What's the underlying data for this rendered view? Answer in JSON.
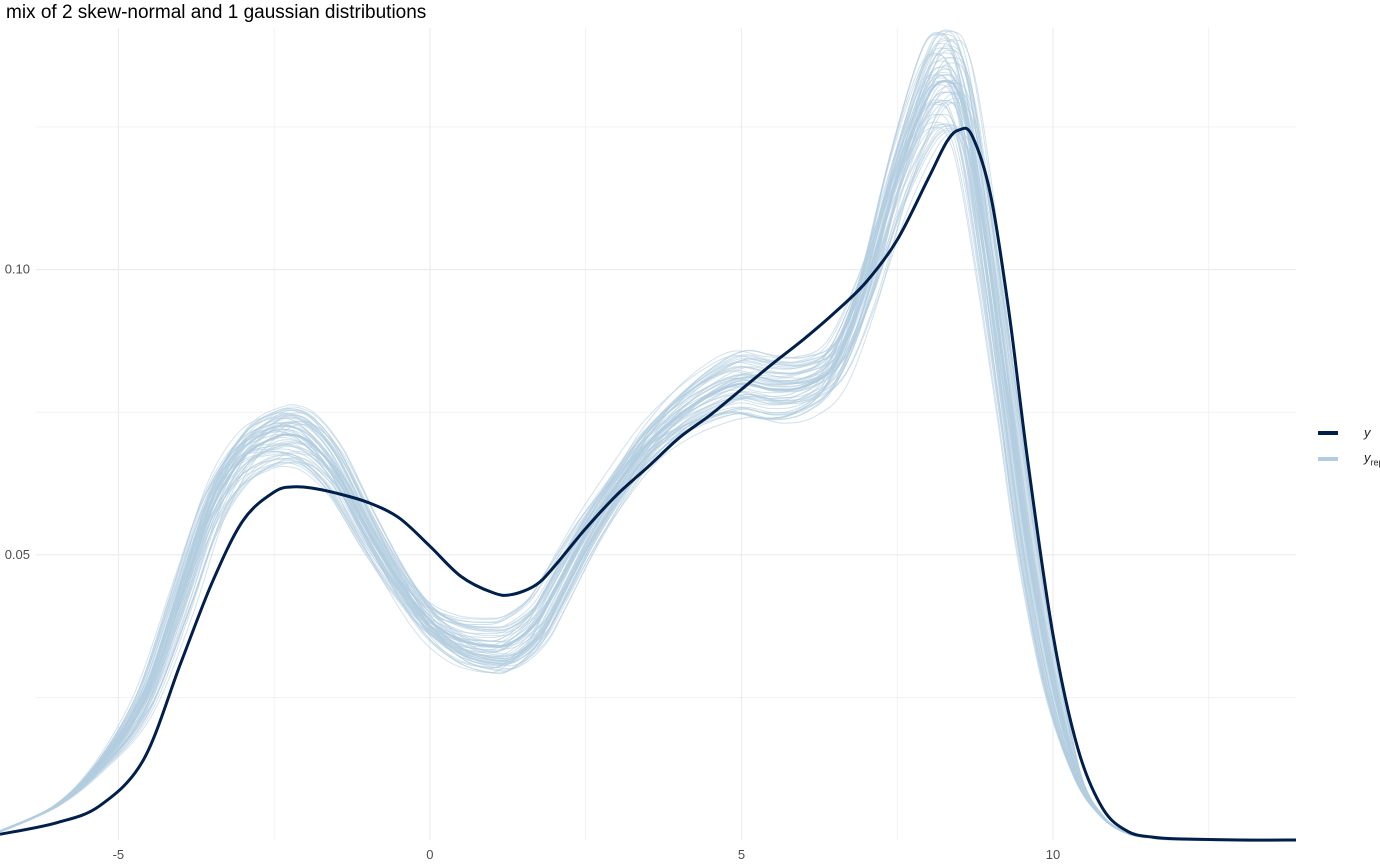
{
  "title": "mix of 2 skew-normal and 1 gaussian distributions",
  "colors": {
    "y": "#011f4b",
    "yrep": "#b3cde0",
    "grid": "#ebebeb",
    "axis_text": "#4d4d4d"
  },
  "legend": {
    "y_label": "y",
    "yrep_label": "y",
    "yrep_sub": "rep"
  },
  "chart_data": {
    "type": "line",
    "title": "mix of 2 skew-normal and 1 gaussian distributions",
    "xlabel": "",
    "ylabel": "",
    "xlim": [
      -6.9,
      13.9
    ],
    "ylim": [
      0.0,
      0.1434
    ],
    "x_ticks": [
      -5,
      0,
      5,
      10
    ],
    "x_tick_labels": [
      "-5",
      "0",
      "5",
      "10"
    ],
    "y_ticks": [
      0.05,
      0.1
    ],
    "y_tick_labels": [
      "0.05",
      "0.10"
    ],
    "grid": true,
    "legend_position": "right",
    "series": [
      {
        "name": "y",
        "x": [
          -6.9,
          -6.0,
          -5.3,
          -4.6,
          -4.0,
          -3.5,
          -3.0,
          -2.5,
          -2.2,
          -1.9,
          -1.5,
          -1.0,
          -0.5,
          0.0,
          0.5,
          1.0,
          1.3,
          1.7,
          2.0,
          2.5,
          3.0,
          3.5,
          4.0,
          4.5,
          5.0,
          5.5,
          6.0,
          6.5,
          7.0,
          7.5,
          8.0,
          8.3,
          8.5,
          8.7,
          9.0,
          9.3,
          9.6,
          10.0,
          10.4,
          10.8,
          11.2,
          11.6,
          12.0,
          13.0,
          13.9
        ],
        "values": [
          0.001,
          0.003,
          0.006,
          0.014,
          0.031,
          0.045,
          0.056,
          0.061,
          0.0619,
          0.0617,
          0.0608,
          0.0592,
          0.0565,
          0.0515,
          0.0462,
          0.0434,
          0.043,
          0.0447,
          0.048,
          0.0546,
          0.0605,
          0.0654,
          0.0705,
          0.0745,
          0.079,
          0.0835,
          0.0878,
          0.0925,
          0.0978,
          0.1052,
          0.116,
          0.1225,
          0.1245,
          0.1235,
          0.113,
          0.092,
          0.066,
          0.036,
          0.016,
          0.0055,
          0.0015,
          0.0005,
          0.0002,
          0.0,
          0.0
        ]
      },
      {
        "name": "yrep",
        "x": [
          -6.9,
          -6.0,
          -5.3,
          -4.6,
          -4.0,
          -3.5,
          -3.0,
          -2.5,
          -2.2,
          -1.9,
          -1.5,
          -1.0,
          -0.5,
          0.0,
          0.5,
          1.0,
          1.3,
          1.7,
          2.0,
          2.5,
          3.0,
          3.5,
          4.0,
          4.5,
          5.0,
          5.5,
          6.0,
          6.5,
          7.0,
          7.5,
          8.0,
          8.3,
          8.5,
          8.7,
          9.0,
          9.3,
          9.6,
          10.0,
          10.4,
          10.8,
          11.2,
          11.6,
          12.0,
          13.0,
          13.9
        ],
        "values": [
          0.0015,
          0.006,
          0.013,
          0.024,
          0.042,
          0.058,
          0.067,
          0.0705,
          0.071,
          0.0695,
          0.0645,
          0.0545,
          0.0455,
          0.0385,
          0.035,
          0.034,
          0.0345,
          0.038,
          0.0435,
          0.0535,
          0.062,
          0.0695,
          0.0745,
          0.078,
          0.08,
          0.079,
          0.0795,
          0.0835,
          0.097,
          0.116,
          0.1305,
          0.133,
          0.1305,
          0.121,
          0.099,
          0.075,
          0.051,
          0.027,
          0.011,
          0.004,
          0.0012,
          0.0004,
          0.0001,
          0.0,
          0.0
        ]
      }
    ]
  }
}
